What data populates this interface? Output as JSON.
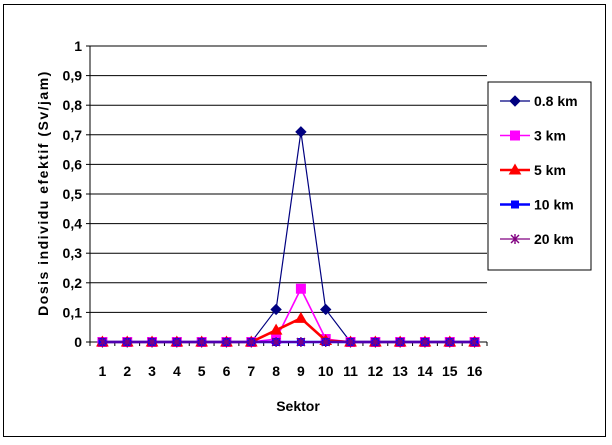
{
  "chart_data": {
    "type": "line",
    "x": [
      "1",
      "2",
      "3",
      "4",
      "5",
      "6",
      "7",
      "8",
      "9",
      "10",
      "11",
      "12",
      "13",
      "14",
      "15",
      "16"
    ],
    "xlabel": "Sektor",
    "ylabel": "Dosis individu efektif (Sv/jam)",
    "ylim": [
      0,
      1
    ],
    "yticks": [
      "0",
      "0,1",
      "0,2",
      "0,3",
      "0,4",
      "0,5",
      "0,6",
      "0,7",
      "0,8",
      "0,9",
      "1"
    ],
    "grid": "horizontal",
    "legend_position": "right",
    "series": [
      {
        "name": "0.8 km",
        "color": "#000080",
        "marker": "diamond",
        "values": [
          0,
          0,
          0,
          0,
          0,
          0,
          0,
          0.11,
          0.71,
          0.11,
          0,
          0,
          0,
          0,
          0,
          0
        ]
      },
      {
        "name": "3 km",
        "color": "#FF00FF",
        "marker": "square",
        "values": [
          0,
          0,
          0,
          0,
          0,
          0,
          0,
          0.01,
          0.18,
          0.01,
          0,
          0,
          0,
          0,
          0,
          0
        ]
      },
      {
        "name": "5 km",
        "color": "#FF0000",
        "marker": "triangle",
        "values": [
          0,
          0,
          0,
          0,
          0,
          0,
          0,
          0.04,
          0.08,
          0.005,
          0,
          0,
          0,
          0,
          0,
          0
        ]
      },
      {
        "name": "10 km",
        "color": "#0000FF",
        "marker": "square-small",
        "values": [
          0,
          0,
          0,
          0,
          0,
          0,
          0,
          0,
          0,
          0,
          0,
          0,
          0,
          0,
          0,
          0
        ]
      },
      {
        "name": "20 km",
        "color": "#800080",
        "marker": "asterisk",
        "values": [
          0,
          0,
          0,
          0,
          0,
          0,
          0,
          0,
          0,
          0,
          0,
          0,
          0,
          0,
          0,
          0
        ]
      }
    ]
  }
}
